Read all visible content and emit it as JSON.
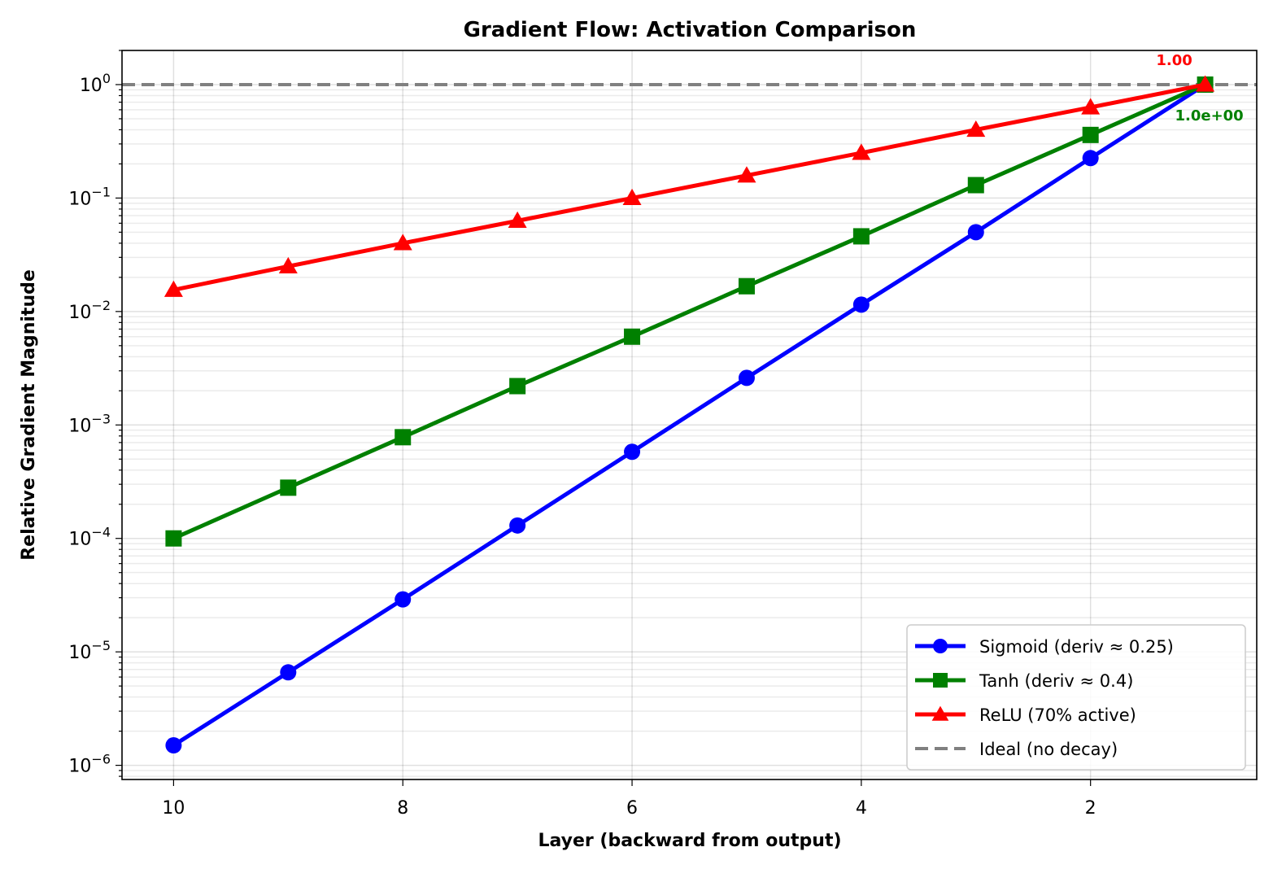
{
  "chart_data": {
    "type": "line",
    "title": "Gradient Flow: Activation Comparison",
    "xlabel": "Layer (backward from output)",
    "ylabel": "Relative Gradient Magnitude",
    "xlim": [
      10.45,
      0.55
    ],
    "ylim": [
      7.5e-07,
      2.0
    ],
    "yscale": "log",
    "x_inverted": true,
    "grid": true,
    "legend_position": "lower-right",
    "x_ticks": [
      10,
      8,
      6,
      4,
      2
    ],
    "y_ticks": [
      {
        "value": 1e-06,
        "base": "10",
        "exp": "−6"
      },
      {
        "value": 1e-05,
        "base": "10",
        "exp": "−5"
      },
      {
        "value": 0.0001,
        "base": "10",
        "exp": "−4"
      },
      {
        "value": 0.001,
        "base": "10",
        "exp": "−3"
      },
      {
        "value": 0.01,
        "base": "10",
        "exp": "−2"
      },
      {
        "value": 0.1,
        "base": "10",
        "exp": "−1"
      },
      {
        "value": 1,
        "base": "10",
        "exp": "0"
      }
    ],
    "x": [
      10,
      9,
      8,
      7,
      6,
      5,
      4,
      3,
      2,
      1
    ],
    "series": [
      {
        "name": "Sigmoid (deriv ≈ 0.25)",
        "color": "#0000ff",
        "marker": "circle",
        "values": [
          1.5e-06,
          6.6e-06,
          2.9e-05,
          0.00013,
          0.00058,
          0.0026,
          0.0115,
          0.05,
          0.225,
          1.0
        ]
      },
      {
        "name": "Tanh (deriv ≈ 0.4)",
        "color": "#008000",
        "marker": "square",
        "values": [
          0.0001,
          0.00028,
          0.00078,
          0.0022,
          0.006,
          0.0167,
          0.046,
          0.13,
          0.36,
          1.0
        ]
      },
      {
        "name": "ReLU (70% active)",
        "color": "#ff0000",
        "marker": "triangle",
        "values": [
          0.0155,
          0.025,
          0.04,
          0.063,
          0.1,
          0.158,
          0.25,
          0.4,
          0.63,
          1.0
        ]
      }
    ],
    "reference_line": {
      "name": "Ideal (no decay)",
      "value": 1.0,
      "color": "#808080",
      "style": "dashed"
    },
    "annotations": [
      {
        "text": "1.00",
        "color": "#ff0000"
      },
      {
        "text": "1.0e+00",
        "color": "#008000"
      }
    ]
  }
}
